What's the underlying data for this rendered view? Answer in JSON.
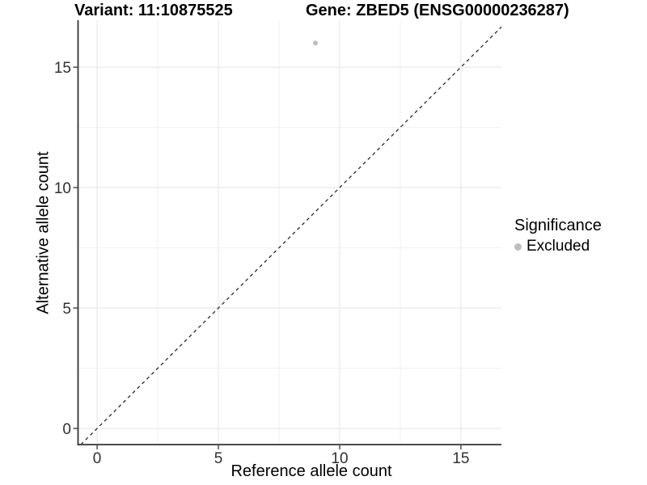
{
  "header": {
    "title_left": "Variant: 11:10875525",
    "title_right": "Gene: ZBED5 (ENSG00000236287)"
  },
  "chart_data": {
    "type": "scatter",
    "xlabel": "Reference allele count",
    "ylabel": "Alternative allele count",
    "xlim": [
      -0.77,
      16.67
    ],
    "ylim": [
      -0.67,
      16.95
    ],
    "xticks": [
      0,
      5,
      10,
      15
    ],
    "yticks": [
      0,
      5,
      10,
      15
    ],
    "minor_xticks": [
      2.5,
      7.5,
      12.5
    ],
    "minor_yticks": [
      2.5,
      7.5,
      12.5
    ],
    "grid": "major+minor",
    "reference_line": {
      "type": "identity y=x",
      "style": "dashed",
      "color": "#1a1a1a"
    },
    "series": [
      {
        "name": "Excluded",
        "color": "#bebebe",
        "marker": "circle",
        "points": [
          {
            "x": 9,
            "y": 16
          }
        ]
      }
    ],
    "legend": {
      "title": "Significance",
      "position": "right",
      "entries": [
        {
          "label": "Excluded",
          "color": "#bebebe",
          "marker": "circle"
        }
      ]
    }
  },
  "colors": {
    "axis_line": "#333333",
    "tick_mark": "#333333",
    "tick_label": "#303030",
    "grid_major": "#e7e7e7",
    "grid_minor": "#f2f2f2",
    "background": "#ffffff"
  }
}
